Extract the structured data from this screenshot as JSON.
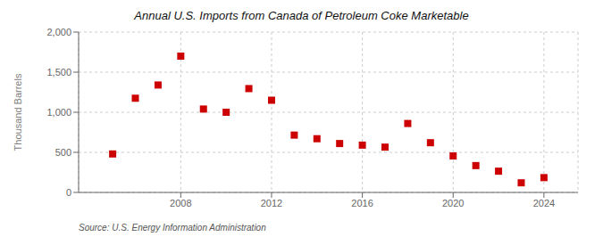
{
  "chart_data": {
    "type": "scatter",
    "title": "Annual U.S. Imports from Canada of Petroleum Coke Marketable",
    "ylabel": "Thousand Barrels",
    "source": "Source: U.S. Energy Information Administration",
    "x": [
      2005,
      2006,
      2007,
      2008,
      2009,
      2010,
      2011,
      2012,
      2013,
      2014,
      2015,
      2016,
      2017,
      2018,
      2019,
      2020,
      2021,
      2022,
      2023,
      2024
    ],
    "values": [
      480,
      1175,
      1340,
      1700,
      1040,
      1000,
      1295,
      1150,
      715,
      670,
      610,
      590,
      565,
      860,
      620,
      455,
      335,
      265,
      120,
      185
    ],
    "color": "#cc0000",
    "marker": "square",
    "xlim": [
      2003.5,
      2025.5
    ],
    "xticks": [
      2008,
      2012,
      2016,
      2020,
      2024
    ],
    "ylim": [
      0,
      2000
    ],
    "yticks": [
      0,
      500,
      {
        "value": 1000,
        "label": "1,000"
      },
      {
        "value": 1500,
        "label": "1,500"
      },
      {
        "value": 2000,
        "label": "2,000"
      }
    ],
    "grid": true
  }
}
